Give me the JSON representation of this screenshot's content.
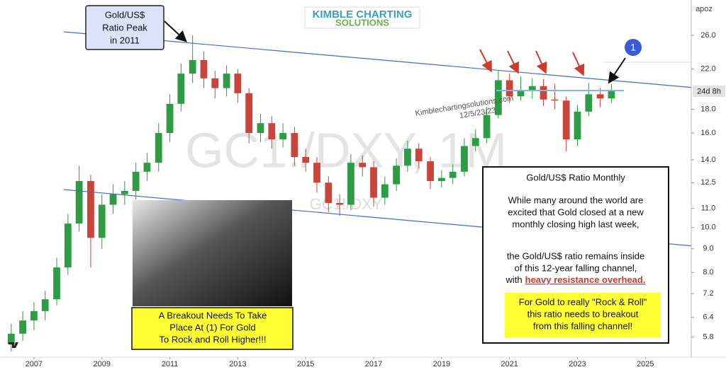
{
  "chart_data": {
    "type": "candlestick",
    "x": [
      2006.33,
      2006.67,
      2007.0,
      2007.33,
      2007.67,
      2008.0,
      2008.33,
      2008.67,
      2009.0,
      2009.33,
      2009.67,
      2010.0,
      2010.33,
      2010.67,
      2011.0,
      2011.33,
      2011.67,
      2012.0,
      2012.33,
      2012.67,
      2013.0,
      2013.33,
      2013.67,
      2014.0,
      2014.33,
      2014.67,
      2015.0,
      2015.33,
      2015.67,
      2016.0,
      2016.33,
      2016.67,
      2017.0,
      2017.33,
      2017.67,
      2018.0,
      2018.33,
      2018.67,
      2019.0,
      2019.33,
      2019.67,
      2020.0,
      2020.33,
      2020.67,
      2021.0,
      2021.33,
      2021.67,
      2022.0,
      2022.33,
      2022.67,
      2023.0,
      2023.33,
      2023.67,
      2024.0
    ],
    "open": [
      5.6,
      5.9,
      6.3,
      6.6,
      7.0,
      8.2,
      10.2,
      12.6,
      9.5,
      11.2,
      11.8,
      12.0,
      13.2,
      13.8,
      16.0,
      18.5,
      21.5,
      23.0,
      21.0,
      20.0,
      21.5,
      19.5,
      16.0,
      16.8,
      15.5,
      16.0,
      14.2,
      13.8,
      12.5,
      11.3,
      11.2,
      13.8,
      13.5,
      11.6,
      12.4,
      13.6,
      14.8,
      13.9,
      12.6,
      12.8,
      13.2,
      15.0,
      15.6,
      17.5,
      20.8,
      19.2,
      19.8,
      20.2,
      18.9,
      18.8,
      15.5,
      17.8,
      19.4,
      19.0
    ],
    "high": [
      6.2,
      6.6,
      6.9,
      7.3,
      8.6,
      10.7,
      13.6,
      13.0,
      11.8,
      12.4,
      12.6,
      13.8,
      14.5,
      16.8,
      19.4,
      22.6,
      26.0,
      24.0,
      21.8,
      22.4,
      22.0,
      20.0,
      17.6,
      17.4,
      16.8,
      16.5,
      14.8,
      14.2,
      12.9,
      11.8,
      14.4,
      14.3,
      13.9,
      12.9,
      14.1,
      15.4,
      15.2,
      14.2,
      13.3,
      13.7,
      15.6,
      16.3,
      18.2,
      21.8,
      21.5,
      21.2,
      21.0,
      20.9,
      20.4,
      19.2,
      18.4,
      20.5,
      20.0,
      20.4
    ],
    "low": [
      5.4,
      5.7,
      6.0,
      6.3,
      6.8,
      7.9,
      9.8,
      8.2,
      9.0,
      10.7,
      11.2,
      11.5,
      12.6,
      13.2,
      15.3,
      17.8,
      20.5,
      20.0,
      19.0,
      19.2,
      18.6,
      15.2,
      15.3,
      14.8,
      14.9,
      13.6,
      13.2,
      11.9,
      10.8,
      10.6,
      10.9,
      12.9,
      11.1,
      11.2,
      12.0,
      13.2,
      13.4,
      12.1,
      12.2,
      12.4,
      12.9,
      14.6,
      15.2,
      17.2,
      18.6,
      18.8,
      19.0,
      18.3,
      18.0,
      14.6,
      15.0,
      17.4,
      18.2,
      18.6
    ],
    "close": [
      5.9,
      6.3,
      6.6,
      7.0,
      8.2,
      10.2,
      12.6,
      9.5,
      11.2,
      11.8,
      12.0,
      13.2,
      13.8,
      16.0,
      18.5,
      21.5,
      23.0,
      21.0,
      20.0,
      21.5,
      19.5,
      16.0,
      16.8,
      15.5,
      16.0,
      14.2,
      13.8,
      12.5,
      11.3,
      11.2,
      13.8,
      13.5,
      11.6,
      12.4,
      13.6,
      14.8,
      13.9,
      12.6,
      12.8,
      13.2,
      15.0,
      15.6,
      17.5,
      20.8,
      19.2,
      19.8,
      20.2,
      18.9,
      18.8,
      15.5,
      17.8,
      19.4,
      19.0,
      19.8
    ],
    "up_color": "#2e9b45",
    "down_color": "#c9443a",
    "y_scale": "log",
    "xlim": [
      2006.0,
      2026.35
    ],
    "xticks": [
      2007,
      2009,
      2011,
      2013,
      2015,
      2017,
      2019,
      2021,
      2023,
      2025
    ],
    "ylim": [
      5.25,
      31
    ],
    "yticks": [
      5.8,
      6.4,
      {
        "value": 7.2,
        "label": "7.2"
      },
      {
        "value": 8,
        "label": "8.0"
      },
      {
        "value": 9,
        "label": "9.0"
      },
      {
        "value": 10,
        "label": "10.0"
      },
      {
        "value": 11,
        "label": "11.0"
      },
      12.5,
      {
        "value": 14,
        "label": "14.0"
      },
      {
        "value": 16,
        "label": "16.0"
      },
      {
        "value": 18,
        "label": "18.0"
      },
      {
        "value": 22,
        "label": "22.0"
      },
      {
        "value": 26,
        "label": "26.0"
      }
    ],
    "grid": false,
    "annotations": {
      "peak_box": [
        "Gold/US$",
        "Ratio Peak",
        "in 2011"
      ],
      "logo": [
        "KIMBLE CHARTING",
        "SOLUTIONS"
      ],
      "watermark": "GC1!/DXY, 1M",
      "watermark_small": "GC1!/DXY",
      "site": "Kimblechartingsolutions.com",
      "date": "12/5/23/23",
      "marker": "1",
      "corner": "apoz",
      "countdown": "24d 8h",
      "caption": [
        "A Breakout Needs To Take",
        "Place At (1) For Gold",
        "To Rock and Roll Higher!!!"
      ],
      "text_box": {
        "title": "Gold/US$ Ratio Monthly",
        "lines": [
          "While many around the world are",
          "excited that Gold closed at a new",
          "monthly closing high last week,",
          "the Gold/US$ ratio remains inside",
          "of this 12-year falling channel,"
        ],
        "with": "with",
        "emphasis": "heavy resistance overhead.",
        "note": [
          "For Gold to really \"Rock & Roll\"",
          "this ratio needs to breakout",
          "from this falling channel!"
        ]
      }
    }
  }
}
